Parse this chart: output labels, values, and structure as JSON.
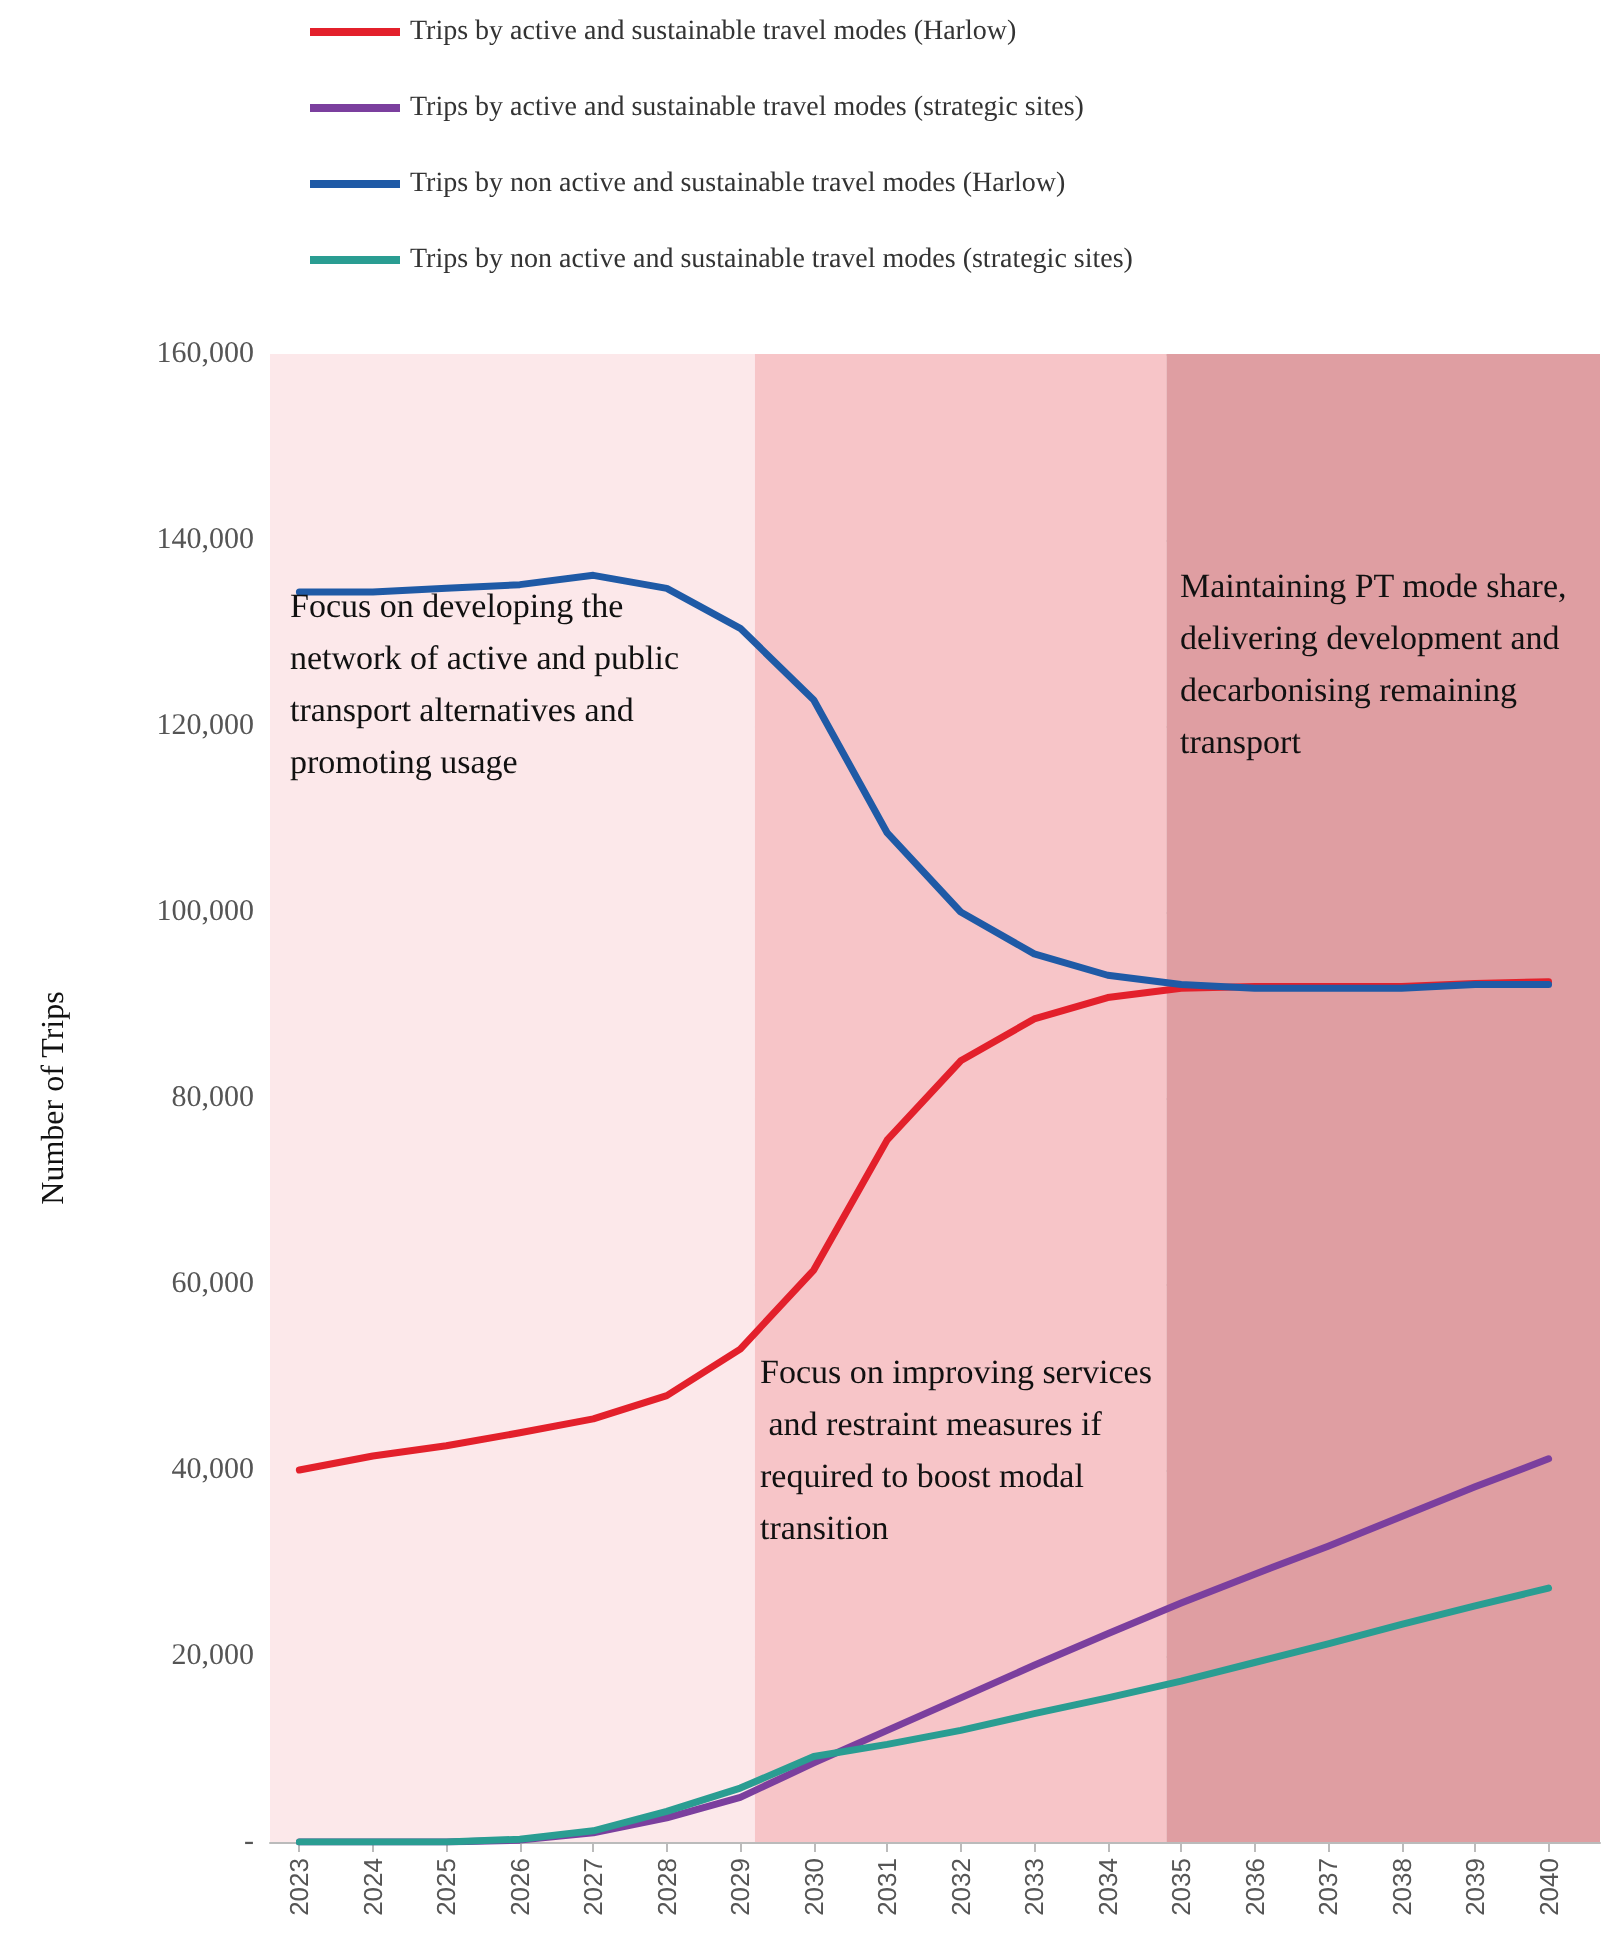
{
  "chart_data": {
    "type": "line",
    "ylabel": "Number of Trips",
    "x": [
      2023,
      2024,
      2025,
      2026,
      2027,
      2028,
      2029,
      2030,
      2031,
      2032,
      2033,
      2034,
      2035,
      2036,
      2037,
      2038,
      2039,
      2040
    ],
    "xlim": [
      2022.6,
      2040.7
    ],
    "xticks": [
      2023,
      2024,
      2025,
      2026,
      2027,
      2028,
      2029,
      2030,
      2031,
      2032,
      2033,
      2034,
      2035,
      2036,
      2037,
      2038,
      2039,
      2040
    ],
    "ylim": [
      0,
      160000
    ],
    "yticks": [
      {
        "value": 0,
        "label": "-"
      },
      {
        "value": 20000,
        "label": "20,000"
      },
      {
        "value": 40000,
        "label": "40,000"
      },
      {
        "value": 60000,
        "label": "60,000"
      },
      {
        "value": 80000,
        "label": "80,000"
      },
      {
        "value": 100000,
        "label": "100,000"
      },
      {
        "value": 120000,
        "label": "120,000"
      },
      {
        "value": 140000,
        "label": "140,000"
      },
      {
        "value": 160000,
        "label": "160,000"
      }
    ],
    "series": [
      {
        "name": "Trips by active and sustainable travel modes (Harlow)",
        "color": "#e3202b",
        "values": [
          40000,
          41500,
          42600,
          44000,
          45500,
          48000,
          53000,
          61500,
          75500,
          84000,
          88500,
          90800,
          91800,
          92000,
          92000,
          92000,
          92300,
          92500
        ]
      },
      {
        "name": "Trips by active and sustainable travel modes (strategic sites)",
        "color": "#7b3f9e",
        "values": [
          0,
          0,
          0,
          200,
          1000,
          2600,
          4800,
          8500,
          12000,
          15500,
          19000,
          22400,
          25700,
          28800,
          31800,
          35000,
          38200,
          41200
        ]
      },
      {
        "name": "Trips by non active and sustainable travel modes (Harlow)",
        "color": "#1f5aa6",
        "values": [
          134400,
          134400,
          134800,
          135200,
          136200,
          134800,
          130500,
          122800,
          108500,
          100000,
          95500,
          93200,
          92200,
          91800,
          91800,
          91800,
          92200,
          92200
        ]
      },
      {
        "name": "Trips by non active and sustainable travel modes (strategic sites)",
        "color": "#2a9d92",
        "values": [
          0,
          0,
          0,
          300,
          1200,
          3300,
          5800,
          9200,
          10500,
          12000,
          13800,
          15500,
          17300,
          19300,
          21300,
          23400,
          25400,
          27300
        ]
      }
    ],
    "bands": [
      {
        "axis": "x",
        "from": 2022.6,
        "to": 2029.2,
        "color": "#fce8ea"
      },
      {
        "axis": "x",
        "from": 2029.2,
        "to": 2034.8,
        "color": "#f7c5c8"
      },
      {
        "axis": "x",
        "from": 2034.8,
        "to": 2040.7,
        "color": "#df9ea2"
      }
    ],
    "annotations": [
      "Focus on developing the network of active and public transport alternatives and promoting usage",
      "Focus on improving services and restraint measures if required to boost modal transition",
      "Maintaining PT mode share, delivering development and decarbonising remaining transport"
    ],
    "grid": "y",
    "legend": "top",
    "marker": "none",
    "line_style": "solid"
  }
}
